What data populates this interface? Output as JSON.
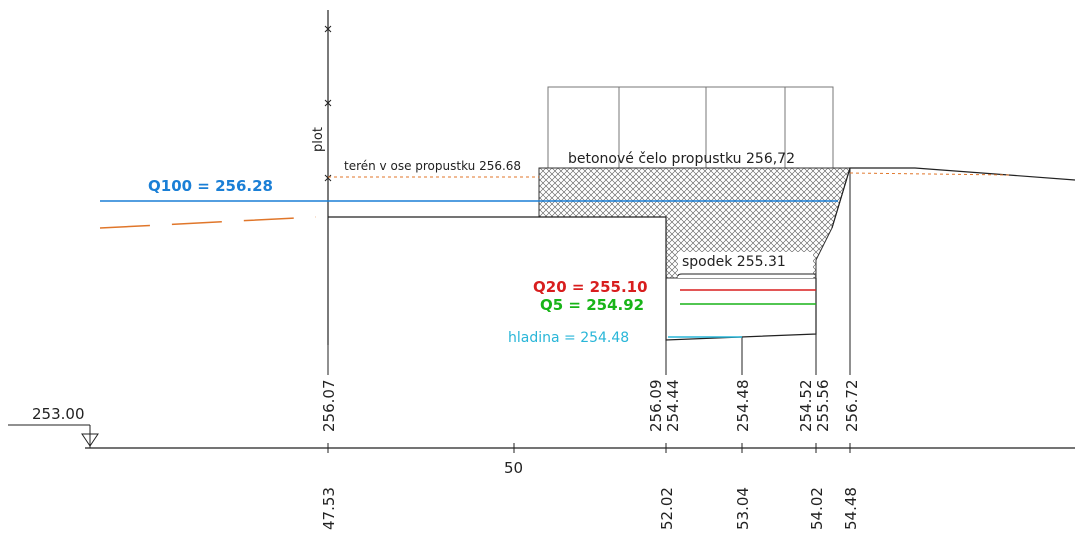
{
  "labels": {
    "q100": "Q100 = 256.28",
    "q20": "Q20 = 255.10",
    "q5": "Q5 = 254.92",
    "hladina": "hladina = 254.48",
    "spodek": "spodek 255.31",
    "celo": "betonové čelo propustku 256,72",
    "teren": "terén v ose propustku 256.68",
    "plot": "plot",
    "datum": "253.00",
    "x_tick": "50"
  },
  "elevations": [
    "256.07",
    "256.09",
    "254.44",
    "254.48",
    "254.52",
    "255.56",
    "256.72"
  ],
  "stations": [
    "47.53",
    "52.02",
    "53.04",
    "54.02",
    "54.48"
  ],
  "colors": {
    "q100": "#1a7fd6",
    "q20": "#d81e1e",
    "q5": "#18b418",
    "hladina": "#29b6d8",
    "terrain": "#e0762a",
    "line": "#222222"
  }
}
